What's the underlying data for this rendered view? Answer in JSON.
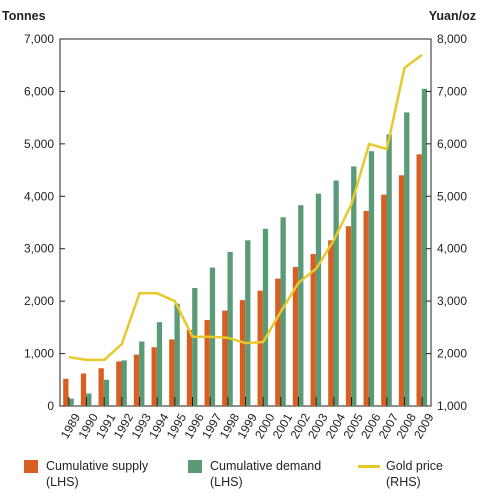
{
  "chart_data": {
    "type": "bar",
    "left_axis": {
      "label": "Tonnes",
      "ylim": [
        0,
        7000
      ],
      "ticks": [
        "0",
        "1,000",
        "2,000",
        "3,000",
        "4,000",
        "5,000",
        "6,000",
        "7,000"
      ]
    },
    "right_axis": {
      "label": "Yuan/oz",
      "ylim": [
        1000,
        8000
      ],
      "ticks": [
        "1,000",
        "2,000",
        "3,000",
        "4,000",
        "5,000",
        "6,000",
        "7,000",
        "8,000"
      ]
    },
    "categories": [
      "1989",
      "1990",
      "1991",
      "1992",
      "1993",
      "1994",
      "1995",
      "1996",
      "1997",
      "1998",
      "1999",
      "2000",
      "2001",
      "2002",
      "2003",
      "2004",
      "2005",
      "2006",
      "2007",
      "2008",
      "2009"
    ],
    "series": [
      {
        "name": "Cumulative supply (LHS)",
        "type": "bar",
        "axis": "left",
        "color": "#d85f22",
        "values": [
          520,
          620,
          720,
          850,
          980,
          1120,
          1270,
          1450,
          1640,
          1820,
          2020,
          2200,
          2430,
          2650,
          2900,
          3160,
          3430,
          3720,
          4030,
          4400,
          4800
        ]
      },
      {
        "name": "Cumulative demand (LHS)",
        "type": "bar",
        "axis": "left",
        "color": "#5b9a77",
        "values": [
          140,
          240,
          500,
          870,
          1230,
          1600,
          1950,
          2250,
          2640,
          2940,
          3160,
          3380,
          3600,
          3830,
          4050,
          4300,
          4570,
          4860,
          5180,
          5600,
          6050
        ]
      },
      {
        "name": "Gold price (RHS)",
        "type": "line",
        "axis": "right",
        "color": "#e8c82a",
        "values": [
          1930,
          1880,
          1880,
          2180,
          3150,
          3150,
          3000,
          2320,
          2320,
          2300,
          2200,
          2220,
          2800,
          3350,
          3620,
          4160,
          4850,
          6000,
          5900,
          7450,
          7700
        ]
      }
    ],
    "legend": [
      {
        "line1": "Cumulative supply",
        "line2": "(LHS)"
      },
      {
        "line1": "Cumulative demand",
        "line2": "(LHS)"
      },
      {
        "line1": "Gold price",
        "line2": "(RHS)"
      }
    ],
    "legend_position": "bottom",
    "grid": false
  }
}
